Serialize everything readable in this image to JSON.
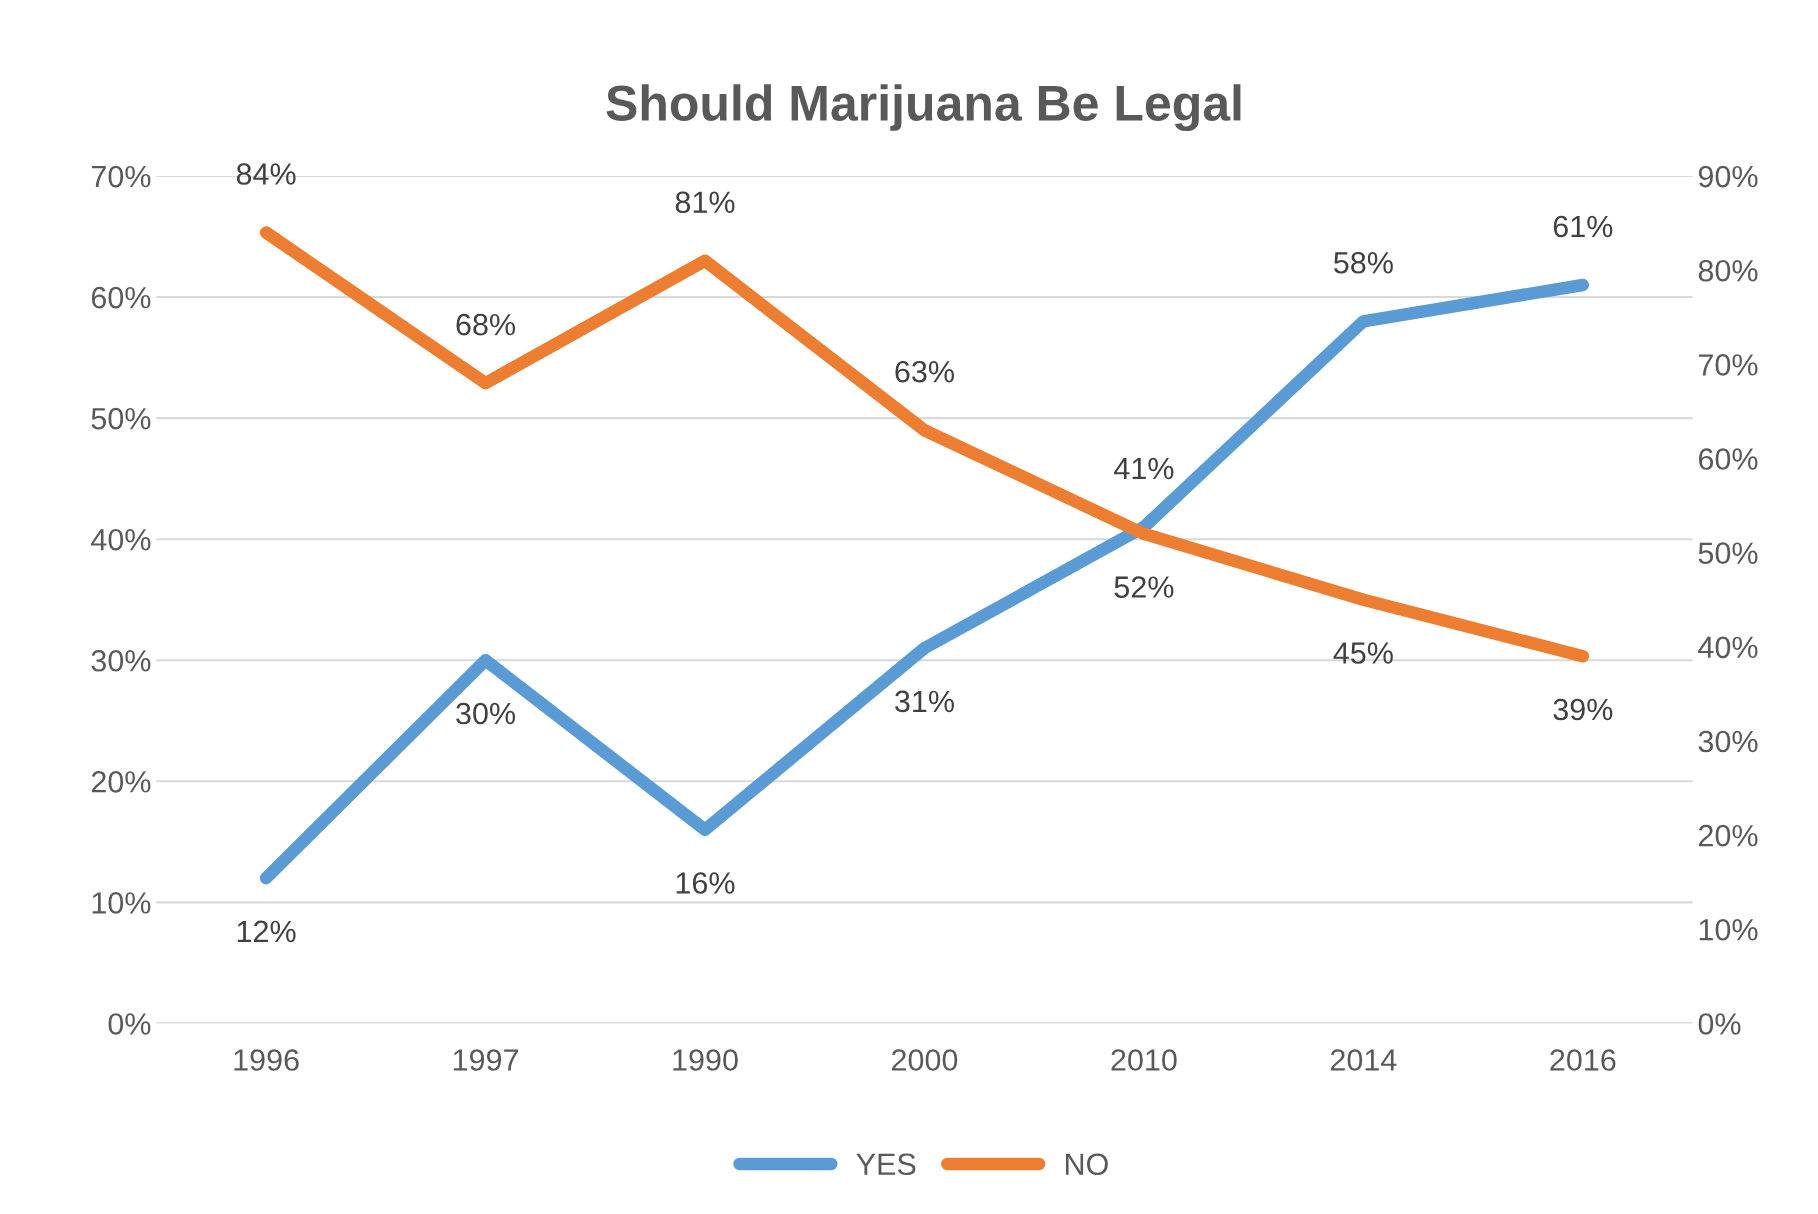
{
  "chart_data": {
    "type": "line",
    "title": "Should Marijuana Be Legal",
    "categories": [
      "1996",
      "1997",
      "1990",
      "2000",
      "2010",
      "2014",
      "2016"
    ],
    "series": [
      {
        "name": "YES",
        "color": "#5b9bd5",
        "values": [
          12,
          30,
          16,
          31,
          41,
          58,
          61
        ],
        "value_labels": [
          "12%",
          "30%",
          "16%",
          "31%",
          "41%",
          "58%",
          "61%"
        ]
      },
      {
        "name": "NO",
        "color": "#ed7d31",
        "axis": "y2",
        "values": [
          84,
          68,
          81,
          63,
          52,
          45,
          39
        ],
        "value_labels": [
          "84%",
          "68%",
          "81%",
          "63%",
          "52%",
          "45%",
          "39%"
        ]
      }
    ],
    "ylim": [
      0,
      70
    ],
    "yticks": [
      {
        "value": 0,
        "label": "0%"
      },
      {
        "value": 10,
        "label": "10%"
      },
      {
        "value": 20,
        "label": "20%"
      },
      {
        "value": 30,
        "label": "30%"
      },
      {
        "value": 40,
        "label": "40%"
      },
      {
        "value": 50,
        "label": "50%"
      },
      {
        "value": 60,
        "label": "60%"
      },
      {
        "value": 70,
        "label": "70%"
      }
    ],
    "y2lim": [
      0,
      90
    ],
    "y2ticks": [
      {
        "value": 0,
        "label": "0%"
      },
      {
        "value": 10,
        "label": "10%"
      },
      {
        "value": 20,
        "label": "20%"
      },
      {
        "value": 30,
        "label": "30%"
      },
      {
        "value": 40,
        "label": "40%"
      },
      {
        "value": 50,
        "label": "50%"
      },
      {
        "value": 60,
        "label": "60%"
      },
      {
        "value": 70,
        "label": "70%"
      },
      {
        "value": 80,
        "label": "80%"
      },
      {
        "value": 90,
        "label": "90%"
      }
    ],
    "grid": "y",
    "legend": "bottom",
    "marker": "none",
    "line_style": "solid"
  }
}
